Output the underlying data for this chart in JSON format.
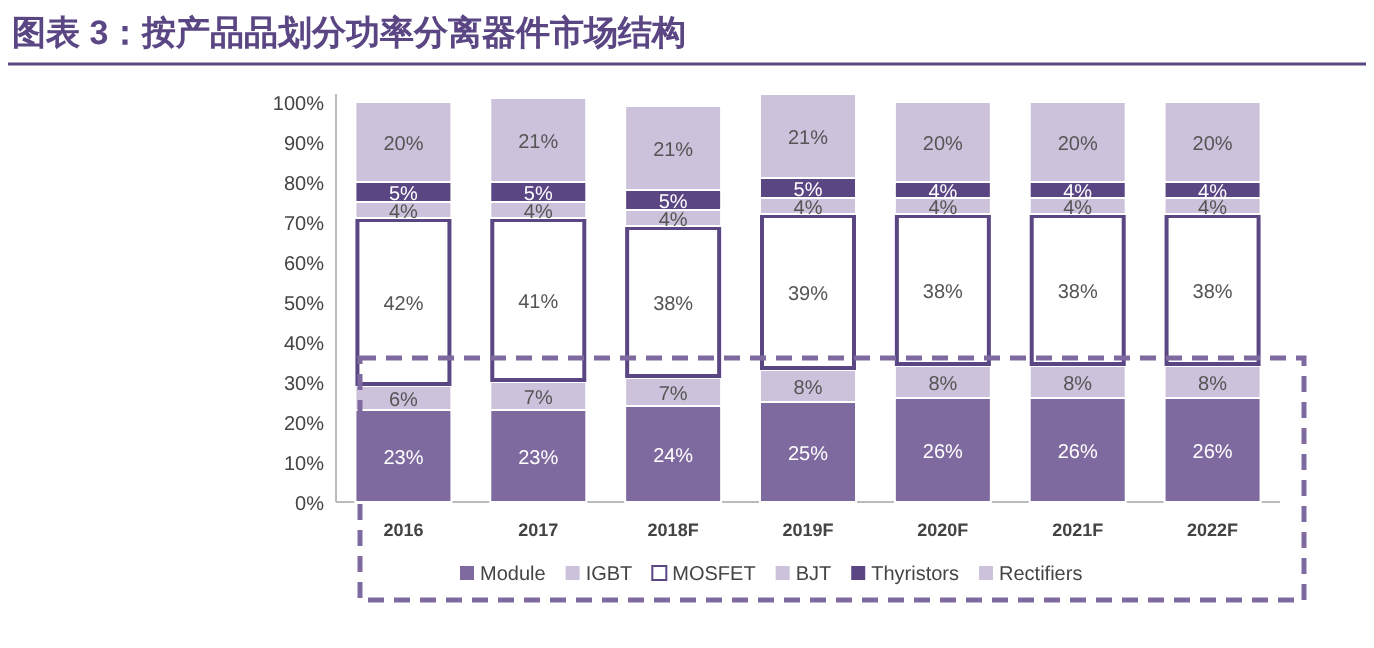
{
  "chart_data": {
    "type": "bar",
    "stacked": true,
    "title": "图表 3：按产品品划分功率分离器件市场结构",
    "categories": [
      "2016",
      "2017",
      "2018F",
      "2019F",
      "2020F",
      "2021F",
      "2022F"
    ],
    "series": [
      {
        "name": "Module",
        "color": "#7f6aa0",
        "values": [
          23,
          23,
          24,
          25,
          26,
          26,
          26
        ],
        "value_labels": [
          "23%",
          "23%",
          "24%",
          "25%",
          "26%",
          "26%",
          "26%"
        ]
      },
      {
        "name": "IGBT",
        "color": "#cdc2dc",
        "values": [
          6,
          7,
          7,
          8,
          8,
          8,
          8
        ],
        "value_labels": [
          "6%",
          "7%",
          "7%",
          "8%",
          "8%",
          "8%",
          "8%"
        ]
      },
      {
        "name": "MOSFET",
        "color": "#ffffff",
        "values": [
          42,
          41,
          38,
          39,
          38,
          38,
          38
        ],
        "value_labels": [
          "42%",
          "41%",
          "38%",
          "39%",
          "38%",
          "38%",
          "38%"
        ]
      },
      {
        "name": "BJT",
        "color": "#cdc2dc",
        "values": [
          4,
          4,
          4,
          4,
          4,
          4,
          4
        ],
        "value_labels": [
          "4%",
          "4%",
          "4%",
          "4%",
          "4%",
          "4%",
          "4%"
        ]
      },
      {
        "name": "Thyristors",
        "color": "#5b4684",
        "values": [
          5,
          5,
          5,
          5,
          4,
          4,
          4
        ],
        "value_labels": [
          "5%",
          "5%",
          "5%",
          "5%",
          "4%",
          "4%",
          "4%"
        ]
      },
      {
        "name": "Rectifiers",
        "color": "#cdc2dc",
        "values": [
          20,
          21,
          21,
          21,
          20,
          20,
          20
        ],
        "value_labels": [
          "20%",
          "21%",
          "21%",
          "21%",
          "20%",
          "20%",
          "20%"
        ]
      }
    ],
    "ylim": [
      0,
      102
    ],
    "yticks": [
      {
        "value": 0,
        "label": "0%"
      },
      {
        "value": 10,
        "label": "10%"
      },
      {
        "value": 20,
        "label": "20%"
      },
      {
        "value": 30,
        "label": "30%"
      },
      {
        "value": 40,
        "label": "40%"
      },
      {
        "value": 50,
        "label": "50%"
      },
      {
        "value": 60,
        "label": "60%"
      },
      {
        "value": 70,
        "label": "70%"
      },
      {
        "value": 80,
        "label": "80%"
      },
      {
        "value": 90,
        "label": "90%"
      },
      {
        "value": 100,
        "label": "100%"
      }
    ],
    "legend": "bottom",
    "grid": false
  }
}
